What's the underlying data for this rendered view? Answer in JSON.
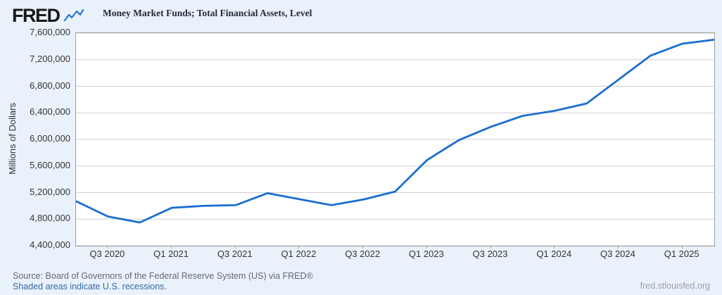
{
  "header": {
    "logo_text": "FRED",
    "legend_label": "Money Market Funds; Total Financial Assets, Level"
  },
  "chart_data": {
    "type": "line",
    "title": "Money Market Funds; Total Financial Assets, Level",
    "ylabel": "Millions of Dollars",
    "xlabel": "",
    "ylim": [
      4400000,
      7600000
    ],
    "grid": "horizontal",
    "legend_position": "top",
    "line_color": "#1b6ed2",
    "x": [
      "2020 Q2",
      "2020 Q3",
      "2020 Q4",
      "2021 Q1",
      "2021 Q2",
      "2021 Q3",
      "2021 Q4",
      "2022 Q1",
      "2022 Q2",
      "2022 Q3",
      "2022 Q4",
      "2023 Q1",
      "2023 Q2",
      "2023 Q3",
      "2023 Q4",
      "2024 Q1",
      "2024 Q2",
      "2024 Q3",
      "2024 Q4",
      "2025 Q1",
      "2025 Q2"
    ],
    "values": [
      5070000,
      4840000,
      4750000,
      4970000,
      5000000,
      5010000,
      5190000,
      5100000,
      5010000,
      5095000,
      5215000,
      5690000,
      5990000,
      6190000,
      6355000,
      6430000,
      6540000,
      6900000,
      7260000,
      7440000,
      7500000
    ],
    "y_ticks": [
      {
        "value": 7600000,
        "label": "7,600,000"
      },
      {
        "value": 7200000,
        "label": "7,200,000"
      },
      {
        "value": 6800000,
        "label": "6,800,000"
      },
      {
        "value": 6400000,
        "label": "6,400,000"
      },
      {
        "value": 6000000,
        "label": "6,000,000"
      },
      {
        "value": 5600000,
        "label": "5,600,000"
      },
      {
        "value": 5200000,
        "label": "5,200,000"
      },
      {
        "value": 4800000,
        "label": "4,800,000"
      },
      {
        "value": 4400000,
        "label": "4,400,000"
      }
    ],
    "x_ticks": [
      {
        "index": 1,
        "label": "Q3 2020"
      },
      {
        "index": 3,
        "label": "Q1 2021"
      },
      {
        "index": 5,
        "label": "Q3 2021"
      },
      {
        "index": 7,
        "label": "Q1 2022"
      },
      {
        "index": 9,
        "label": "Q3 2022"
      },
      {
        "index": 11,
        "label": "Q1 2023"
      },
      {
        "index": 13,
        "label": "Q3 2023"
      },
      {
        "index": 15,
        "label": "Q1 2024"
      },
      {
        "index": 17,
        "label": "Q3 2024"
      },
      {
        "index": 19,
        "label": "Q1 2025"
      }
    ]
  },
  "footer": {
    "source_line": "Source: Board of Governors of the Federal Reserve System (US) via FRED®",
    "recession_note": "Shaded areas indicate U.S. recessions.",
    "site_url": "fred.stlouisfed.org"
  },
  "colors": {
    "page_background": "#e9f2fb",
    "plot_background": "#ffffff",
    "plot_border": "#9e9e9e",
    "gridline": "#cfcfcf",
    "axis_text": "#333333",
    "line": "#1b6ed2"
  }
}
